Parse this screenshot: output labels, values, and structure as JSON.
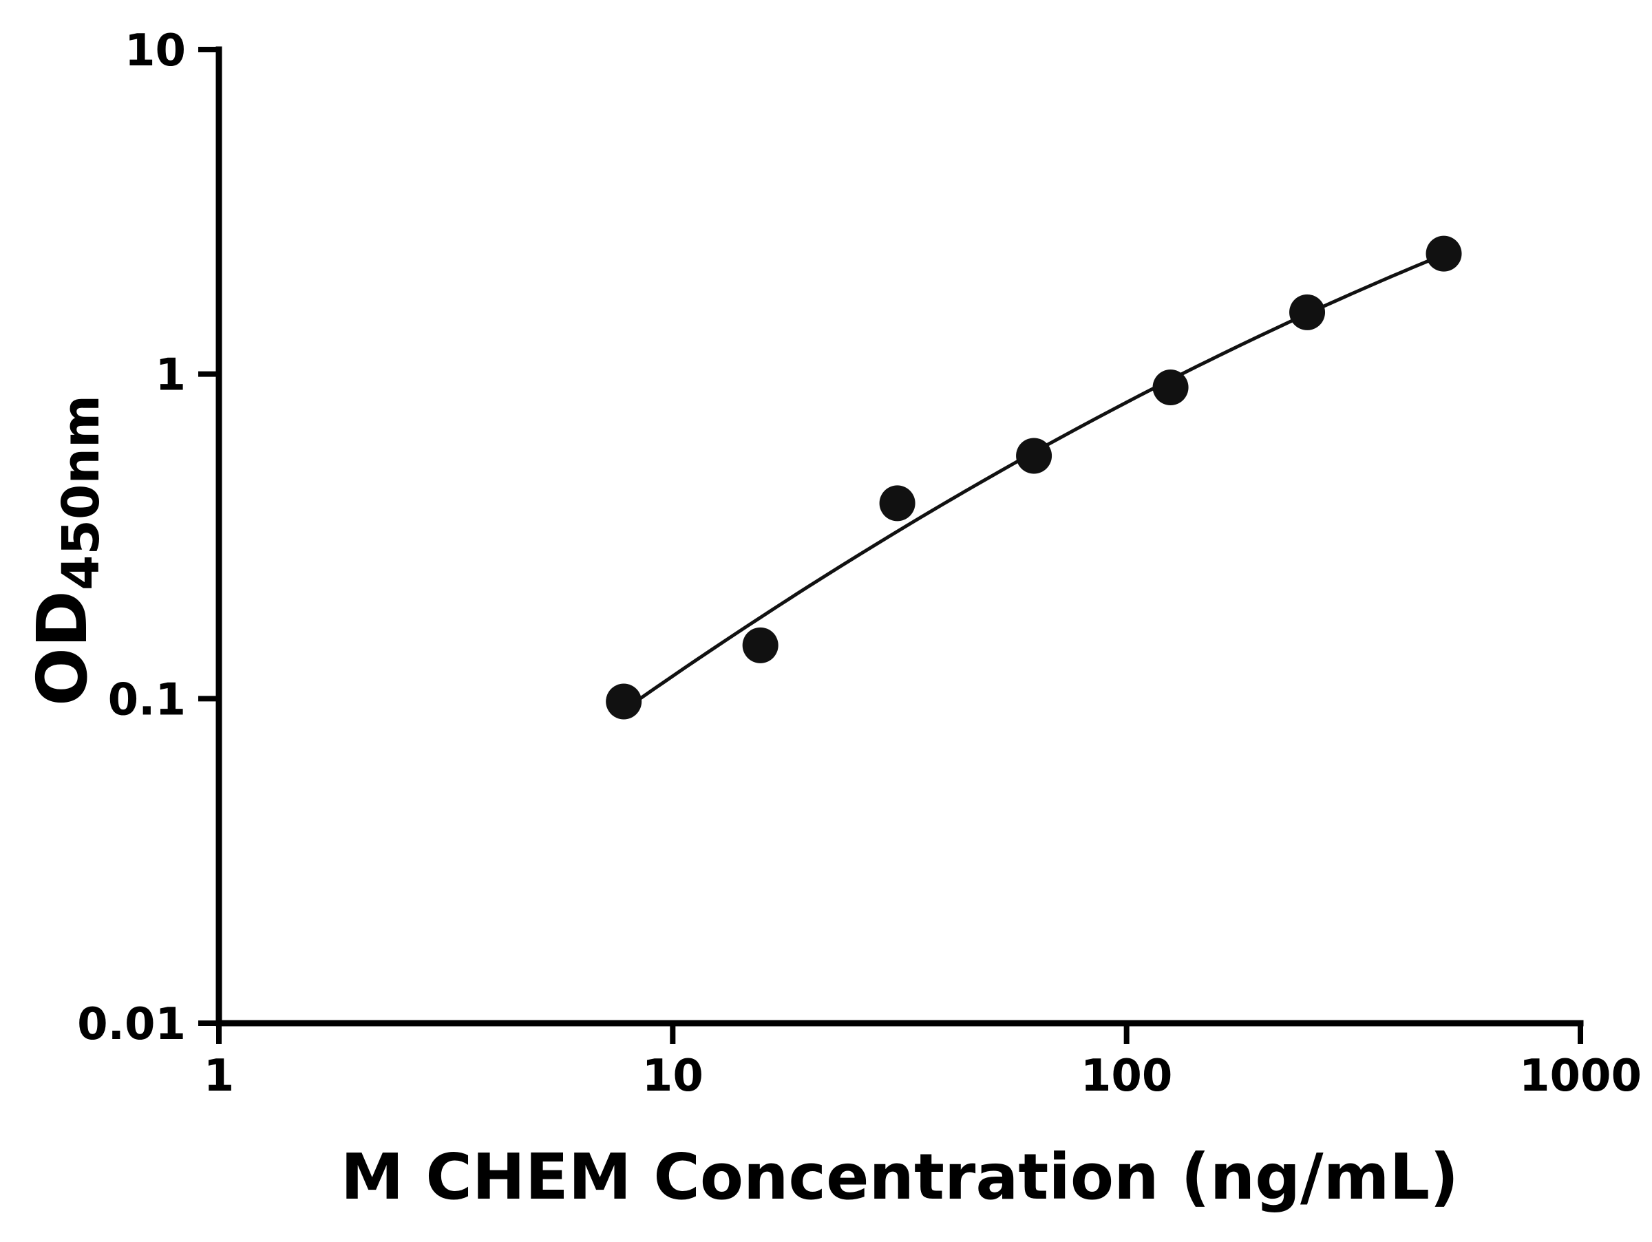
{
  "chart_data": {
    "type": "scatter",
    "title": "",
    "xlabel": "M CHEM Concentration (ng/mL)",
    "ylabel_main": "OD",
    "ylabel_sub": "450nm",
    "x_scale": "log",
    "y_scale": "log",
    "xlim": [
      1,
      1000
    ],
    "ylim": [
      0.01,
      10
    ],
    "x_ticks": [
      1,
      10,
      100,
      1000
    ],
    "x_tick_labels": [
      "1",
      "10",
      "100",
      "1000"
    ],
    "y_ticks": [
      0.01,
      0.1,
      1,
      10
    ],
    "y_tick_labels": [
      "0.01",
      "0.1",
      "1",
      "10"
    ],
    "grid": false,
    "legend": "none",
    "fit_style": "quadratic-loglog",
    "points": [
      {
        "x": 7.8,
        "y": 0.098
      },
      {
        "x": 15.6,
        "y": 0.146
      },
      {
        "x": 31.25,
        "y": 0.4
      },
      {
        "x": 62.5,
        "y": 0.56
      },
      {
        "x": 125,
        "y": 0.91
      },
      {
        "x": 250,
        "y": 1.55
      },
      {
        "x": 500,
        "y": 2.35
      }
    ],
    "axis_color": "#000000",
    "marker_color": "#111111",
    "line_color": "#111111"
  }
}
